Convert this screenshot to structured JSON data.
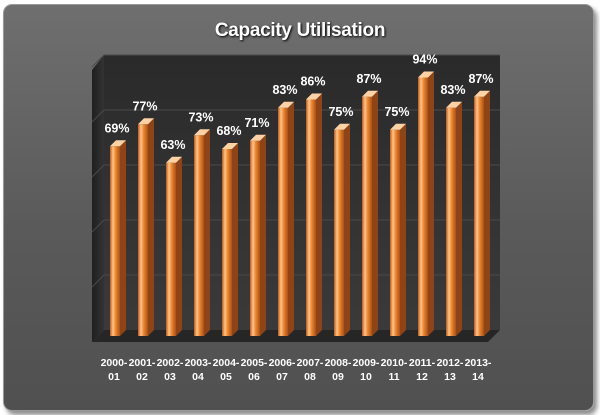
{
  "chart_data": {
    "type": "bar",
    "title": "Capacity Utilisation",
    "categories": [
      [
        "2000-",
        "01"
      ],
      [
        "2001-",
        "02"
      ],
      [
        "2002-",
        "03"
      ],
      [
        "2003-",
        "04"
      ],
      [
        "2004-",
        "05"
      ],
      [
        "2005-",
        "06"
      ],
      [
        "2006-",
        "07"
      ],
      [
        "2007-",
        "08"
      ],
      [
        "2008-",
        "09"
      ],
      [
        "2009-",
        "10"
      ],
      [
        "2010-",
        "11"
      ],
      [
        "2011-",
        "12"
      ],
      [
        "2012-",
        "13"
      ],
      [
        "2013-",
        "14"
      ]
    ],
    "values": [
      69,
      77,
      63,
      73,
      68,
      71,
      83,
      86,
      75,
      87,
      75,
      94,
      83,
      87
    ],
    "data_labels": [
      "69%",
      "77%",
      "63%",
      "73%",
      "68%",
      "71%",
      "83%",
      "86%",
      "75%",
      "87%",
      "75%",
      "94%",
      "83%",
      "87%"
    ],
    "xlabel": "",
    "ylabel": "",
    "y_axis_labels_shown": false,
    "grid": true,
    "legend": "none",
    "colors": {
      "bar": "#e8822a",
      "bar_highlight": "#ffc58a",
      "bar_shadow": "#a9501a",
      "plot_bg": "#2e2e2e",
      "background": "#5e5e5e"
    }
  }
}
